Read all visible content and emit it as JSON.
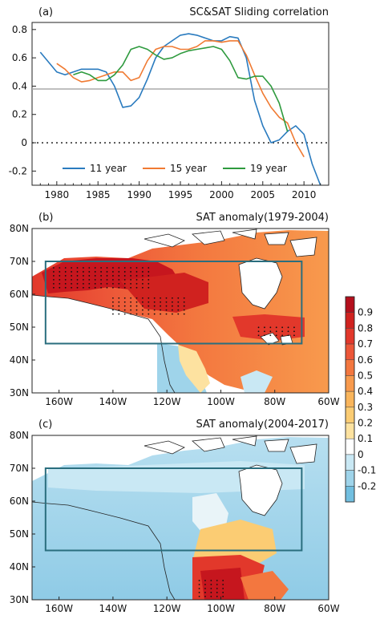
{
  "chart_data": [
    {
      "type": "line",
      "panel_label": "(a)",
      "title": "SC&SAT Sliding correlation",
      "xlim": [
        1977,
        2013
      ],
      "ylim": [
        -0.3,
        0.85
      ],
      "x_ticks": [
        "1980",
        "1985",
        "1990",
        "1995",
        "2000",
        "2005",
        "2010"
      ],
      "y_ticks": [
        "0.8",
        "0.6",
        "0.4",
        "0.2",
        "0",
        "-0.2"
      ],
      "reference_line": 0.38,
      "zero_line": 0,
      "series": [
        {
          "name": "11 year",
          "color": "#2a7bbf",
          "x": [
            1978,
            1980,
            1981,
            1982,
            1983,
            1984,
            1985,
            1986,
            1987,
            1988,
            1989,
            1990,
            1991,
            1992,
            1993,
            1994,
            1995,
            1996,
            1997,
            1998,
            1999,
            2000,
            2001,
            2002,
            2003,
            2004,
            2005,
            2006,
            2007,
            2008,
            2009,
            2010,
            2011,
            2012
          ],
          "values": [
            0.64,
            0.5,
            0.48,
            0.5,
            0.52,
            0.52,
            0.52,
            0.5,
            0.4,
            0.25,
            0.26,
            0.32,
            0.45,
            0.6,
            0.68,
            0.72,
            0.76,
            0.77,
            0.76,
            0.74,
            0.72,
            0.72,
            0.75,
            0.74,
            0.6,
            0.3,
            0.12,
            0.0,
            0.02,
            0.08,
            0.12,
            0.06,
            -0.15,
            -0.3
          ]
        },
        {
          "name": "15 year",
          "color": "#f07a32",
          "x": [
            1980,
            1981,
            1982,
            1983,
            1984,
            1985,
            1986,
            1987,
            1988,
            1989,
            1990,
            1991,
            1992,
            1993,
            1994,
            1995,
            1996,
            1997,
            1998,
            1999,
            2000,
            2001,
            2002,
            2003,
            2004,
            2005,
            2006,
            2007,
            2008,
            2009,
            2010
          ],
          "values": [
            0.56,
            0.52,
            0.46,
            0.43,
            0.44,
            0.46,
            0.48,
            0.5,
            0.5,
            0.44,
            0.46,
            0.58,
            0.66,
            0.68,
            0.68,
            0.66,
            0.66,
            0.68,
            0.72,
            0.72,
            0.71,
            0.72,
            0.72,
            0.62,
            0.48,
            0.35,
            0.25,
            0.18,
            0.14,
            0.0,
            -0.1
          ]
        },
        {
          "name": "19 year",
          "color": "#2e9a3e",
          "x": [
            1982,
            1983,
            1984,
            1985,
            1986,
            1987,
            1988,
            1989,
            1990,
            1991,
            1992,
            1993,
            1994,
            1995,
            1996,
            1997,
            1998,
            1999,
            2000,
            2001,
            2002,
            2003,
            2004,
            2005,
            2006,
            2007,
            2008
          ],
          "values": [
            0.48,
            0.5,
            0.48,
            0.44,
            0.44,
            0.48,
            0.55,
            0.66,
            0.68,
            0.66,
            0.62,
            0.59,
            0.6,
            0.63,
            0.65,
            0.66,
            0.67,
            0.68,
            0.66,
            0.58,
            0.46,
            0.45,
            0.47,
            0.47,
            0.4,
            0.28,
            0.08
          ]
        }
      ]
    },
    {
      "type": "heatmap",
      "panel_label": "(b)",
      "title": "SAT anomaly(1979-2004)",
      "x_ticks": [
        "160W",
        "140W",
        "120W",
        "100W",
        "80W",
        "60W"
      ],
      "y_ticks": [
        "80N",
        "70N",
        "60N",
        "50N",
        "40N",
        "30N"
      ],
      "lon_range": [
        -170,
        -60
      ],
      "lat_range": [
        30,
        80
      ],
      "box": {
        "lon": [
          -165,
          -70
        ],
        "lat": [
          45,
          70
        ]
      }
    },
    {
      "type": "heatmap",
      "panel_label": "(c)",
      "title": "SAT anomaly(2004-2017)",
      "x_ticks": [
        "160W",
        "140W",
        "120W",
        "100W",
        "80W",
        "60W"
      ],
      "y_ticks": [
        "80N",
        "70N",
        "60N",
        "50N",
        "40N",
        "30N"
      ],
      "lon_range": [
        -170,
        -60
      ],
      "lat_range": [
        30,
        80
      ],
      "box": {
        "lon": [
          -165,
          -70
        ],
        "lat": [
          45,
          70
        ]
      }
    }
  ],
  "colorbar": {
    "labels": [
      "0.9",
      "0.8",
      "0.7",
      "0.6",
      "0.5",
      "0.4",
      "0.3",
      "0.2",
      "0.1",
      "0",
      "-0.1",
      "-0.2"
    ],
    "colors": [
      "#b40f1c",
      "#d0221f",
      "#e2382b",
      "#ec5638",
      "#f3773f",
      "#f89a4d",
      "#f9b55c",
      "#fbcc73",
      "#fde2a0",
      "#ffffff",
      "#c9e8f4",
      "#9fd4ea",
      "#72bfe0"
    ]
  }
}
